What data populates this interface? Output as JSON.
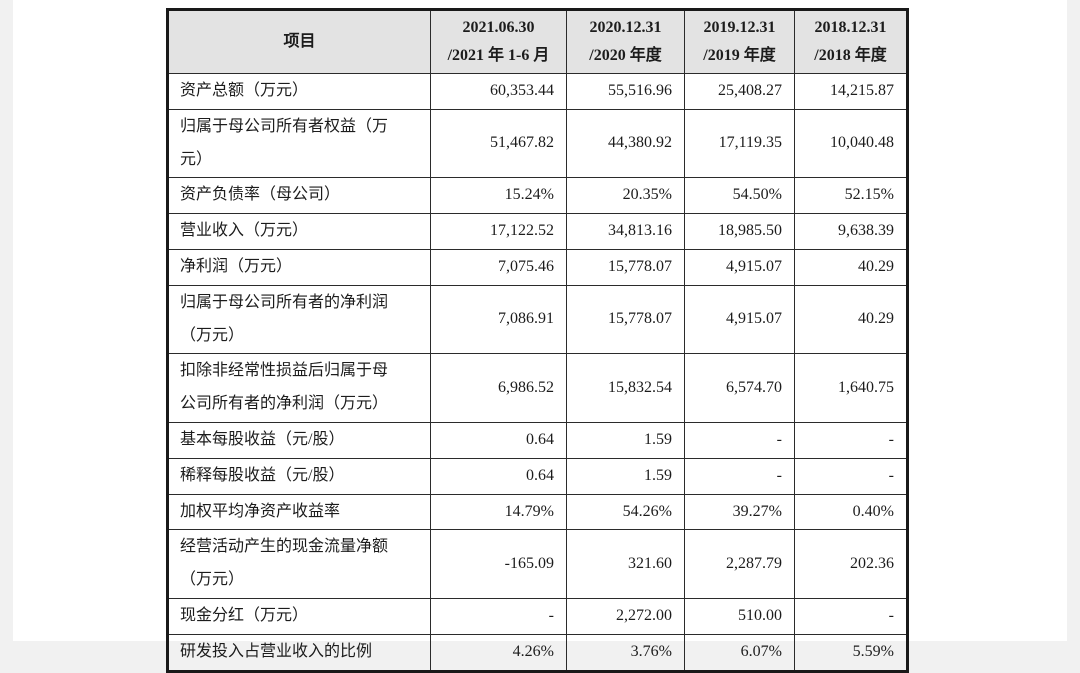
{
  "page": {
    "background_color": "#f1f1f1",
    "paper_color": "#ffffff",
    "header_bg_color": "#e3e3e3",
    "border_color": "#191919",
    "text_color": "#1c1c1c"
  },
  "table": {
    "header": {
      "item_label": "项目",
      "periods": [
        {
          "line1": "2021.06.30",
          "line2": "/2021 年 1-6 月"
        },
        {
          "line1": "2020.12.31",
          "line2": "/2020 年度"
        },
        {
          "line1": "2019.12.31",
          "line2": "/2019 年度"
        },
        {
          "line1": "2018.12.31",
          "line2": "/2018 年度"
        }
      ]
    },
    "rows": [
      {
        "label": "资产总额（万元）",
        "values": [
          "60,353.44",
          "55,516.96",
          "25,408.27",
          "14,215.87"
        ]
      },
      {
        "label": "归属于母公司所有者权益（万\n元）",
        "values": [
          "51,467.82",
          "44,380.92",
          "17,119.35",
          "10,040.48"
        ]
      },
      {
        "label": "资产负债率（母公司）",
        "values": [
          "15.24%",
          "20.35%",
          "54.50%",
          "52.15%"
        ]
      },
      {
        "label": "营业收入（万元）",
        "values": [
          "17,122.52",
          "34,813.16",
          "18,985.50",
          "9,638.39"
        ]
      },
      {
        "label": "净利润（万元）",
        "values": [
          "7,075.46",
          "15,778.07",
          "4,915.07",
          "40.29"
        ]
      },
      {
        "label": "归属于母公司所有者的净利润\n（万元）",
        "values": [
          "7,086.91",
          "15,778.07",
          "4,915.07",
          "40.29"
        ]
      },
      {
        "label": "扣除非经常性损益后归属于母\n公司所有者的净利润（万元）",
        "values": [
          "6,986.52",
          "15,832.54",
          "6,574.70",
          "1,640.75"
        ]
      },
      {
        "label": "基本每股收益（元/股）",
        "values": [
          "0.64",
          "1.59",
          "-",
          "-"
        ]
      },
      {
        "label": "稀释每股收益（元/股）",
        "values": [
          "0.64",
          "1.59",
          "-",
          "-"
        ]
      },
      {
        "label": "加权平均净资产收益率",
        "values": [
          "14.79%",
          "54.26%",
          "39.27%",
          "0.40%"
        ]
      },
      {
        "label": "经营活动产生的现金流量净额\n（万元）",
        "values": [
          "-165.09",
          "321.60",
          "2,287.79",
          "202.36"
        ]
      },
      {
        "label": "现金分红（万元）",
        "values": [
          "-",
          "2,272.00",
          "510.00",
          "-"
        ]
      },
      {
        "label": "研发投入占营业收入的比例",
        "values": [
          "4.26%",
          "3.76%",
          "6.07%",
          "5.59%"
        ]
      }
    ]
  },
  "chart_data": {
    "type": "table",
    "title": "主要财务数据摘要",
    "columns": [
      "项目",
      "2021.06.30 /2021 年 1-6 月",
      "2020.12.31 /2020 年度",
      "2019.12.31 /2019 年度",
      "2018.12.31 /2018 年度"
    ],
    "series": [
      {
        "name": "资产总额（万元）",
        "values": [
          60353.44,
          55516.96,
          25408.27,
          14215.87
        ]
      },
      {
        "name": "归属于母公司所有者权益（万元）",
        "values": [
          51467.82,
          44380.92,
          17119.35,
          10040.48
        ]
      },
      {
        "name": "资产负债率（母公司）",
        "values": [
          "15.24%",
          "20.35%",
          "54.50%",
          "52.15%"
        ]
      },
      {
        "name": "营业收入（万元）",
        "values": [
          17122.52,
          34813.16,
          18985.5,
          9638.39
        ]
      },
      {
        "name": "净利润（万元）",
        "values": [
          7075.46,
          15778.07,
          4915.07,
          40.29
        ]
      },
      {
        "name": "归属于母公司所有者的净利润（万元）",
        "values": [
          7086.91,
          15778.07,
          4915.07,
          40.29
        ]
      },
      {
        "name": "扣除非经常性损益后归属于母公司所有者的净利润（万元）",
        "values": [
          6986.52,
          15832.54,
          6574.7,
          1640.75
        ]
      },
      {
        "name": "基本每股收益（元/股）",
        "values": [
          0.64,
          1.59,
          null,
          null
        ]
      },
      {
        "name": "稀释每股收益（元/股）",
        "values": [
          0.64,
          1.59,
          null,
          null
        ]
      },
      {
        "name": "加权平均净资产收益率",
        "values": [
          "14.79%",
          "54.26%",
          "39.27%",
          "0.40%"
        ]
      },
      {
        "name": "经营活动产生的现金流量净额（万元）",
        "values": [
          -165.09,
          321.6,
          2287.79,
          202.36
        ]
      },
      {
        "name": "现金分红（万元）",
        "values": [
          null,
          2272.0,
          510.0,
          null
        ]
      },
      {
        "name": "研发投入占营业收入的比例",
        "values": [
          "4.26%",
          "3.76%",
          "6.07%",
          "5.59%"
        ]
      }
    ]
  }
}
